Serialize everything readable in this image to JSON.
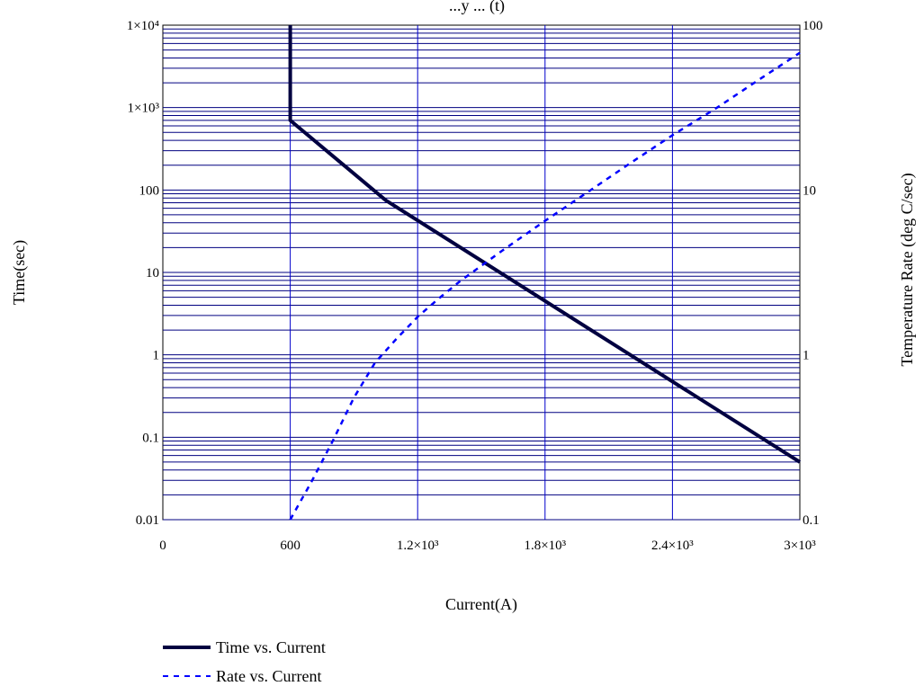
{
  "chart_data": {
    "type": "line",
    "title": "...y ... (t)",
    "xlabel": "Current(A)",
    "ylabel_left": "Time(sec)",
    "ylabel_right": "Temperature Rate (deg C/sec)",
    "x_scale": "linear",
    "xlim": [
      0,
      3000
    ],
    "x_ticks": [
      0,
      600,
      1200,
      1800,
      2400,
      3000
    ],
    "x_tick_labels": [
      "0",
      "600",
      "1.2×10³",
      "1.8×10³",
      "2.4×10³",
      "3×10³"
    ],
    "y_left_scale": "log",
    "y_left_lim": [
      0.01,
      10000
    ],
    "y_left_ticks": [
      0.01,
      0.1,
      1,
      10,
      100,
      1000,
      10000
    ],
    "y_left_tick_labels": [
      "0.01",
      "0.1",
      "1",
      "10",
      "100",
      "1×10³",
      "1×10⁴"
    ],
    "y_right_scale": "log",
    "y_right_lim": [
      0.1,
      100
    ],
    "y_right_ticks": [
      0.1,
      1,
      10,
      100
    ],
    "y_right_tick_labels": [
      "0.1",
      "1",
      "10",
      "100"
    ],
    "grid": true,
    "grid_color": "#000080",
    "vertical_grid_color": "#0000cc",
    "legend_position": "bottom-left",
    "series": [
      {
        "name": "Time vs. Current",
        "axis": "left",
        "style": "solid",
        "color": "#000040",
        "x": [
          600,
          600,
          1050,
          3000
        ],
        "y": [
          10000,
          700,
          75,
          0.05
        ]
      },
      {
        "name": "Rate vs. Current",
        "axis": "right",
        "style": "dashed",
        "color": "#0000ff",
        "x": [
          600,
          700,
          800,
          900,
          1000,
          1100,
          1200,
          1300,
          1400,
          1600,
          1800,
          2000,
          2200,
          2400,
          2600,
          2800,
          3000
        ],
        "y": [
          0.1,
          0.17,
          0.3,
          0.55,
          0.9,
          1.25,
          1.7,
          2.2,
          2.8,
          4.3,
          6.5,
          9.7,
          14.5,
          21.5,
          31,
          46,
          68
        ]
      }
    ]
  }
}
